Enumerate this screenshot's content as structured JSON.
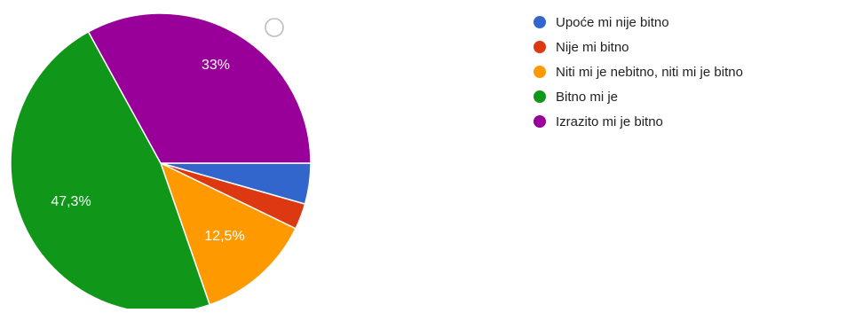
{
  "chart_data": {
    "type": "pie",
    "slices": [
      {
        "label": "Upoće mi nije bitno",
        "value": 4.4,
        "color": "#3366cc",
        "data_label": ""
      },
      {
        "label": "Nije mi bitno",
        "value": 2.8,
        "color": "#dc3912",
        "data_label": ""
      },
      {
        "label": "Niti mi je nebitno, niti mi je bitno",
        "value": 12.5,
        "color": "#ff9900",
        "data_label": "12,5%"
      },
      {
        "label": "Bitno mi je",
        "value": 47.3,
        "color": "#109618",
        "data_label": "47,3%"
      },
      {
        "label": "Izrazito mi je bitno",
        "value": 33,
        "color": "#990099",
        "data_label": "33%"
      }
    ],
    "start_angle_deg": 90,
    "direction": "clockwise",
    "legend_position": "right",
    "label_color": "#ffffff",
    "legend_text_color": "#222222"
  }
}
